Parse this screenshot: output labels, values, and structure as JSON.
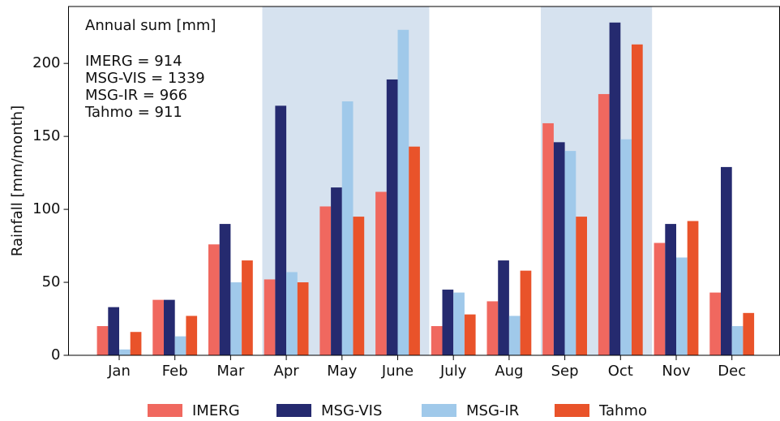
{
  "chart_data": {
    "type": "bar",
    "y_label": "Rainfall [mm/month]",
    "categories": [
      "Jan",
      "Feb",
      "Mar",
      "Apr",
      "May",
      "June",
      "July",
      "Aug",
      "Sep",
      "Oct",
      "Nov",
      "Dec"
    ],
    "series": [
      {
        "name": "IMERG",
        "color": "#f0685f",
        "values": [
          20,
          38,
          76,
          52,
          102,
          112,
          20,
          37,
          159,
          179,
          77,
          43
        ]
      },
      {
        "name": "MSG-VIS",
        "color": "#252a6f",
        "values": [
          33,
          38,
          90,
          171,
          115,
          189,
          45,
          65,
          146,
          228,
          90,
          129
        ]
      },
      {
        "name": "MSG-IR",
        "color": "#a0c9ea",
        "values": [
          4,
          13,
          50,
          57,
          174,
          223,
          43,
          27,
          140,
          148,
          67,
          20
        ]
      },
      {
        "name": "Tahmo",
        "color": "#e9532a",
        "values": [
          16,
          27,
          65,
          50,
          95,
          143,
          28,
          58,
          95,
          213,
          92,
          29
        ]
      }
    ],
    "ylim": [
      0,
      239
    ],
    "yticks": [
      0,
      50,
      100,
      150,
      200
    ],
    "shaded_spans": [
      [
        "Apr",
        "June"
      ],
      [
        "Sep",
        "Oct"
      ]
    ],
    "shade_color": "#d6e2ef",
    "annotation": {
      "title": "Annual sum [mm]",
      "lines": [
        "IMERG = 914",
        "MSG-VIS = 1339",
        "MSG-IR = 966",
        "Tahmo = 911"
      ]
    },
    "legend": "bottom"
  }
}
